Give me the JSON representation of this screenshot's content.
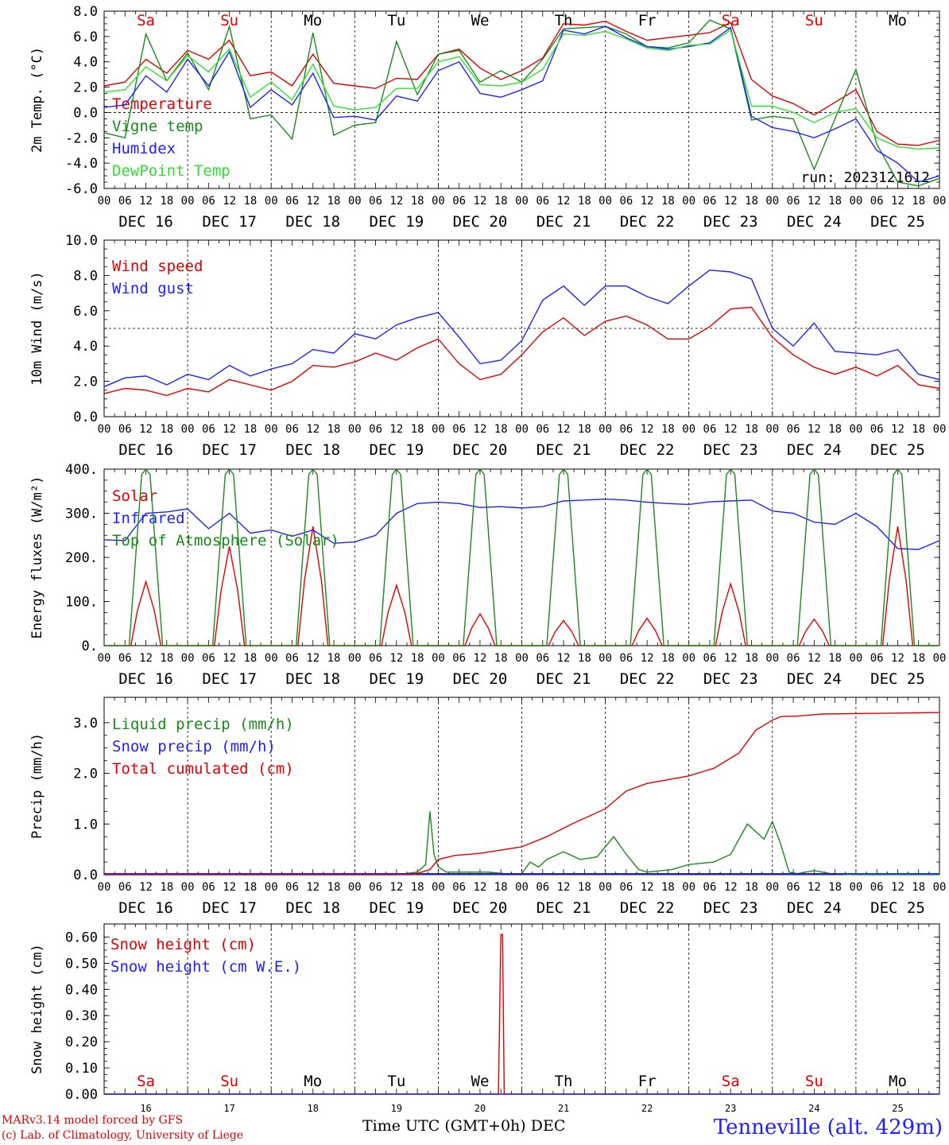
{
  "footer": {
    "model": "MARv3.14 model forced by GFS",
    "credit": "(c) Lab. of Climatology, University of Liege",
    "xlabel": "Time UTC (GMT+0h) DEC",
    "station": "Tenneville (alt. 429m)"
  },
  "chart_data": [
    {
      "type": "line",
      "ylabel": "2m Temp. (°C)",
      "ylim": [
        -6,
        8
      ],
      "yticks": [
        "8.0",
        "6.0",
        "4.0",
        "2.0",
        "0.0",
        "-2.0",
        "-4.0",
        "-6.0"
      ],
      "ytick_values": [
        8,
        6,
        4,
        2,
        0,
        -2,
        -4,
        -6
      ],
      "ref_line": 0,
      "run_label": "run: 2023121612",
      "day_labels": [
        "Sa",
        "Su",
        "Mo",
        "Tu",
        "We",
        "Th",
        "Fr",
        "Sa",
        "Su",
        "Mo"
      ],
      "day_label_colors": [
        "#e00000",
        "#e00000",
        "#000000",
        "#000000",
        "#000000",
        "#000000",
        "#000000",
        "#e00000",
        "#e00000",
        "#000000"
      ],
      "hour_ticks": [
        "00",
        "06",
        "12",
        "18"
      ],
      "date_labels": [
        "DEC 16",
        "DEC 17",
        "DEC 18",
        "DEC 19",
        "DEC 20",
        "DEC 21",
        "DEC 22",
        "DEC 23",
        "DEC 24",
        "DEC 25"
      ],
      "x_days": [
        0,
        0.25,
        0.5,
        0.75,
        1,
        1.25,
        1.5,
        1.75,
        2,
        2.25,
        2.5,
        2.75,
        3,
        3.25,
        3.5,
        3.75,
        4,
        4.25,
        4.5,
        4.75,
        5,
        5.25,
        5.5,
        5.75,
        6,
        6.25,
        6.5,
        6.75,
        7,
        7.25,
        7.5,
        7.75,
        8,
        8.25,
        8.5,
        8.75,
        9,
        9.25,
        9.5,
        9.75,
        10
      ],
      "series": [
        {
          "name": "Temperature",
          "color": "#e00000",
          "values": [
            2.1,
            2.4,
            4.2,
            3.1,
            4.9,
            4.2,
            5.7,
            2.9,
            3.2,
            2.1,
            4.6,
            2.3,
            2.1,
            1.9,
            2.7,
            2.6,
            4.6,
            5.0,
            3.5,
            2.6,
            3.3,
            4.3,
            7.0,
            6.9,
            7.2,
            6.4,
            5.7,
            5.9,
            6.1,
            6.3,
            7.1,
            2.6,
            1.3,
            0.7,
            -0.2,
            0.8,
            1.8,
            -1.5,
            -2.5,
            -2.6,
            -2.2
          ]
        },
        {
          "name": "Vigne temp",
          "color": "#1a8a1a",
          "values": [
            -1.6,
            -2.0,
            6.2,
            2.5,
            4.7,
            1.8,
            6.8,
            -0.5,
            -0.2,
            -2.1,
            6.3,
            -1.8,
            -1.0,
            -0.8,
            5.6,
            1.4,
            4.6,
            4.9,
            2.4,
            3.3,
            2.4,
            4.2,
            6.6,
            6.7,
            6.8,
            6.2,
            5.2,
            5.1,
            5.5,
            7.3,
            6.6,
            -0.6,
            -0.3,
            -0.5,
            -4.5,
            -0.5,
            3.4,
            -2.5,
            -5.5,
            -5.8,
            -5.2
          ]
        },
        {
          "name": "Humidex",
          "color": "#2020ff",
          "values": [
            0.4,
            0.6,
            2.9,
            1.6,
            4.2,
            2.1,
            4.8,
            0.4,
            1.8,
            0.6,
            3.1,
            -0.4,
            -0.3,
            -0.6,
            1.3,
            0.9,
            3.3,
            4.0,
            1.5,
            1.2,
            1.8,
            2.5,
            6.5,
            6.2,
            6.8,
            5.9,
            5.2,
            5.0,
            5.2,
            5.5,
            6.7,
            -0.3,
            -1.2,
            -1.5,
            -2.0,
            -1.3,
            -0.5,
            -3.0,
            -4.0,
            -5.5,
            -5.0
          ]
        },
        {
          "name": "DewPoint Temp",
          "color": "#30e030",
          "values": [
            1.6,
            1.8,
            3.6,
            2.5,
            4.5,
            3.2,
            5.0,
            1.2,
            2.4,
            1.0,
            3.8,
            0.5,
            0.2,
            0.4,
            1.9,
            1.9,
            4.0,
            4.4,
            2.2,
            2.1,
            2.4,
            3.4,
            6.2,
            6.1,
            6.4,
            5.8,
            5.1,
            4.9,
            5.3,
            5.4,
            6.5,
            0.5,
            0.5,
            0.0,
            -0.8,
            0.0,
            0.3,
            -2.0,
            -2.7,
            -2.9,
            -2.8
          ]
        }
      ]
    },
    {
      "type": "line",
      "ylabel": "10m Wind (m/s)",
      "ylim": [
        0,
        10
      ],
      "yticks": [
        "10.0",
        "8.0",
        "6.0",
        "4.0",
        "2.0",
        "0.0"
      ],
      "ytick_values": [
        10,
        8,
        6,
        4,
        2,
        0
      ],
      "ref_line": 5,
      "hour_ticks": [
        "00",
        "06",
        "12",
        "18"
      ],
      "date_labels": [
        "DEC 16",
        "DEC 17",
        "DEC 18",
        "DEC 19",
        "DEC 20",
        "DEC 21",
        "DEC 22",
        "DEC 23",
        "DEC 24",
        "DEC 25"
      ],
      "x_days": [
        0,
        0.25,
        0.5,
        0.75,
        1,
        1.25,
        1.5,
        1.75,
        2,
        2.25,
        2.5,
        2.75,
        3,
        3.25,
        3.5,
        3.75,
        4,
        4.25,
        4.5,
        4.75,
        5,
        5.25,
        5.5,
        5.75,
        6,
        6.25,
        6.5,
        6.75,
        7,
        7.25,
        7.5,
        7.75,
        8,
        8.25,
        8.5,
        8.75,
        9,
        9.25,
        9.5,
        9.75,
        10
      ],
      "series": [
        {
          "name": "Wind speed",
          "color": "#e00000",
          "values": [
            1.3,
            1.6,
            1.5,
            1.2,
            1.6,
            1.4,
            2.1,
            1.8,
            1.5,
            2.0,
            2.9,
            2.8,
            3.1,
            3.6,
            3.2,
            3.9,
            4.4,
            3.0,
            2.1,
            2.4,
            3.5,
            4.8,
            5.6,
            4.6,
            5.4,
            5.7,
            5.2,
            4.4,
            4.4,
            5.1,
            6.1,
            6.2,
            4.5,
            3.5,
            2.8,
            2.4,
            2.8,
            2.3,
            2.9,
            1.8,
            1.6
          ]
        },
        {
          "name": "Wind gust",
          "color": "#2020ff",
          "values": [
            1.7,
            2.2,
            2.3,
            1.8,
            2.4,
            2.1,
            2.9,
            2.3,
            2.7,
            3.0,
            3.8,
            3.6,
            4.7,
            4.4,
            5.2,
            5.6,
            5.9,
            4.5,
            3.0,
            3.2,
            4.3,
            6.6,
            7.4,
            6.3,
            7.4,
            7.4,
            6.8,
            6.4,
            7.4,
            8.3,
            8.2,
            7.8,
            5.0,
            4.0,
            5.3,
            3.7,
            3.6,
            3.5,
            3.8,
            2.4,
            2.1
          ]
        }
      ]
    },
    {
      "type": "line",
      "ylabel": "Energy fluxes (W/m²)",
      "ylim": [
        0,
        400
      ],
      "yticks": [
        "400.",
        "300.",
        "200.",
        "100.",
        "0."
      ],
      "ytick_values": [
        400,
        300,
        200,
        100,
        0
      ],
      "hour_ticks": [
        "00",
        "06",
        "12",
        "18"
      ],
      "date_labels": [
        "DEC 16",
        "DEC 17",
        "DEC 18",
        "DEC 19",
        "DEC 20",
        "DEC 21",
        "DEC 22",
        "DEC 23",
        "DEC 24",
        "DEC 25"
      ],
      "solar_peaks": [
        145,
        225,
        270,
        137,
        72,
        57,
        62,
        140,
        60,
        270
      ],
      "toa_peak": 400,
      "series": [
        {
          "name": "Solar",
          "color": "#e00000",
          "values": [
            145,
            225,
            270,
            137,
            72,
            57,
            62,
            140,
            60,
            270
          ]
        },
        {
          "name": "Infrared",
          "color": "#2020ff",
          "x_days": [
            0,
            0.25,
            0.5,
            0.75,
            1,
            1.25,
            1.5,
            1.75,
            2,
            2.25,
            2.5,
            2.75,
            3,
            3.25,
            3.5,
            3.75,
            4,
            4.25,
            4.5,
            4.75,
            5,
            5.25,
            5.5,
            5.75,
            6,
            6.25,
            6.5,
            6.75,
            7,
            7.25,
            7.5,
            7.75,
            8,
            8.25,
            8.5,
            8.75,
            9,
            9.25,
            9.5,
            9.75,
            10
          ],
          "values": [
            240,
            238,
            300,
            303,
            310,
            265,
            300,
            255,
            262,
            248,
            262,
            232,
            235,
            250,
            300,
            322,
            325,
            322,
            313,
            315,
            312,
            315,
            328,
            330,
            332,
            330,
            325,
            322,
            320,
            326,
            328,
            330,
            305,
            300,
            280,
            275,
            300,
            270,
            220,
            218,
            238
          ]
        },
        {
          "name": "Top of Atmosphere (Solar)",
          "color": "#1a8a1a",
          "values": [
            400,
            400,
            400,
            400,
            400,
            400,
            400,
            400,
            400,
            400
          ]
        }
      ]
    },
    {
      "type": "line",
      "ylabel": "Precip (mm/h)",
      "ylim": [
        0,
        3.5
      ],
      "yticks": [
        "3.0",
        "2.0",
        "1.0",
        "0.0"
      ],
      "ytick_values": [
        3,
        2,
        1,
        0
      ],
      "hour_ticks": [
        "00",
        "06",
        "12",
        "18"
      ],
      "date_labels": [
        "DEC 16",
        "DEC 17",
        "DEC 18",
        "DEC 19",
        "DEC 20",
        "DEC 21",
        "DEC 22",
        "DEC 23",
        "DEC 24",
        "DEC 25"
      ],
      "series": [
        {
          "name": "Liquid precip (mm/h)",
          "color": "#1a8a1a",
          "x_days": [
            0,
            3.5,
            3.75,
            3.85,
            3.9,
            3.95,
            4.0,
            4.1,
            4.3,
            4.6,
            4.8,
            5.0,
            5.1,
            5.2,
            5.3,
            5.5,
            5.7,
            5.9,
            6.1,
            6.25,
            6.4,
            6.5,
            6.8,
            7.0,
            7.3,
            7.5,
            7.7,
            7.9,
            8.0,
            8.1,
            8.2,
            8.3,
            8.5,
            8.7,
            9.0,
            10
          ],
          "values": [
            0,
            0,
            0.05,
            0.2,
            1.25,
            0.4,
            0.15,
            0.05,
            0.05,
            0.05,
            0.02,
            0.02,
            0.25,
            0.15,
            0.3,
            0.45,
            0.3,
            0.35,
            0.75,
            0.4,
            0.1,
            0.05,
            0.1,
            0.2,
            0.25,
            0.4,
            1.0,
            0.7,
            1.05,
            0.6,
            0.05,
            0.02,
            0.08,
            0.02,
            0.0,
            0.0
          ]
        },
        {
          "name": "Snow precip (mm/h)",
          "color": "#2020ff",
          "x_days": [
            0,
            10
          ],
          "values": [
            0.02,
            0.02
          ]
        },
        {
          "name": "Total cumulated (cm)",
          "color": "#e00000",
          "x_days": [
            0,
            3.7,
            3.9,
            4.0,
            4.2,
            4.5,
            5.0,
            5.3,
            5.6,
            6.0,
            6.25,
            6.5,
            7.0,
            7.3,
            7.6,
            7.8,
            8.0,
            8.1,
            8.3,
            8.6,
            9.0,
            9.5,
            10
          ],
          "values": [
            0,
            0,
            0.1,
            0.3,
            0.38,
            0.42,
            0.55,
            0.75,
            1.0,
            1.3,
            1.65,
            1.8,
            1.95,
            2.1,
            2.4,
            2.85,
            3.05,
            3.12,
            3.13,
            3.17,
            3.18,
            3.19,
            3.2
          ]
        }
      ]
    },
    {
      "type": "line",
      "ylabel": "Snow height (cm)",
      "ylim": [
        0,
        0.65
      ],
      "yticks": [
        "0.60",
        "0.50",
        "0.40",
        "0.30",
        "0.20",
        "0.10",
        "0.00"
      ],
      "ytick_values": [
        0.6,
        0.5,
        0.4,
        0.3,
        0.2,
        0.1,
        0
      ],
      "day_labels": [
        "Sa",
        "Su",
        "Mo",
        "Tu",
        "We",
        "Th",
        "Fr",
        "Sa",
        "Su",
        "Mo"
      ],
      "day_label_colors": [
        "#e00000",
        "#e00000",
        "#000000",
        "#000000",
        "#000000",
        "#000000",
        "#000000",
        "#e00000",
        "#e00000",
        "#000000"
      ],
      "day_numbers": [
        "16",
        "17",
        "18",
        "19",
        "20",
        "21",
        "22",
        "23",
        "24",
        "25"
      ],
      "series": [
        {
          "name": "Snow height (cm)",
          "color": "#e00000",
          "x_days": [
            0,
            4.72,
            4.75,
            4.77,
            4.79,
            10
          ],
          "values": [
            0,
            0,
            0.61,
            0.61,
            0,
            0
          ]
        },
        {
          "name": "Snow height (cm W.E.)",
          "color": "#2020ff",
          "x_days": [
            0,
            10
          ],
          "values": [
            0,
            0
          ]
        }
      ]
    }
  ]
}
